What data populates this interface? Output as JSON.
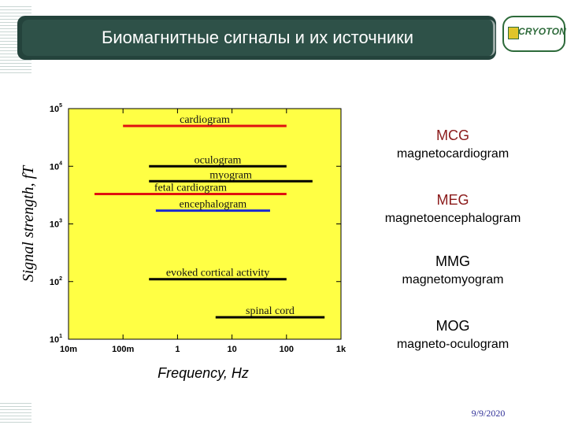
{
  "slide": {
    "title": "Биомагнитные сигналы и их источники",
    "logo_text": "CRYOTON",
    "date": "9/9/2020"
  },
  "modalities": [
    {
      "abbr": "MCG",
      "name": "magnetocardiogram"
    },
    {
      "abbr": "MEG",
      "name": "magnetoencephalogram"
    },
    {
      "abbr": "MMG",
      "name": "magnetomyogram"
    },
    {
      "abbr": "MOG",
      "name": "magneto-oculogram"
    }
  ],
  "colors": {
    "plot_background": "#ffff44",
    "title_bar": "#24433c",
    "red": "#e01010",
    "black": "#000000",
    "blue": "#1a2ad0"
  },
  "chart_data": {
    "type": "range",
    "x_scale": "log",
    "y_scale": "log",
    "xlim": [
      0.01,
      1000
    ],
    "ylim": [
      10,
      100000
    ],
    "xlabel": "Frequency, Hz",
    "ylabel": "Signal strength, fT",
    "x_ticks": [
      {
        "value": 0.01,
        "label": "10m"
      },
      {
        "value": 0.1,
        "label": "100m"
      },
      {
        "value": 1,
        "label": "1"
      },
      {
        "value": 10,
        "label": "10"
      },
      {
        "value": 100,
        "label": "100"
      },
      {
        "value": 1000,
        "label": "1k"
      }
    ],
    "y_ticks": [
      {
        "value": 10,
        "base": "10",
        "exp": "1"
      },
      {
        "value": 100,
        "base": "10",
        "exp": "2"
      },
      {
        "value": 1000,
        "base": "10",
        "exp": "3"
      },
      {
        "value": 10000,
        "base": "10",
        "exp": "4"
      },
      {
        "value": 100000,
        "base": "10",
        "exp": "5"
      }
    ],
    "series": [
      {
        "label": "cardiogram",
        "x_min": 0.1,
        "x_max": 100,
        "y": 50000,
        "color": "#e01010"
      },
      {
        "label": "oculogram",
        "x_min": 0.3,
        "x_max": 100,
        "y": 10000,
        "color": "#000000"
      },
      {
        "label": "myogram",
        "x_min": 0.3,
        "x_max": 300,
        "y": 5500,
        "color": "#000000"
      },
      {
        "label": "fetal cardiogram",
        "x_min": 0.03,
        "x_max": 100,
        "y": 3300,
        "color": "#e01010"
      },
      {
        "label": "encephalogram",
        "x_min": 0.4,
        "x_max": 50,
        "y": 1700,
        "color": "#1a2ad0"
      },
      {
        "label": "evoked cortical activity",
        "x_min": 0.3,
        "x_max": 100,
        "y": 110,
        "color": "#000000"
      },
      {
        "label": "spinal cord",
        "x_min": 5,
        "x_max": 500,
        "y": 24,
        "color": "#000000"
      }
    ]
  }
}
